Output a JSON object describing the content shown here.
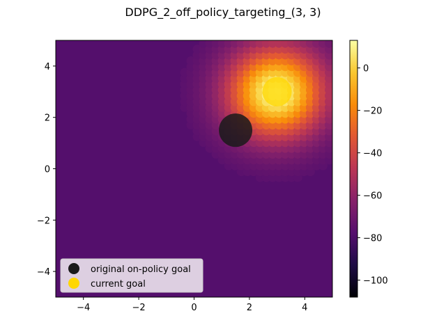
{
  "chart_data": {
    "type": "heatmap",
    "title": "DDPG_2_off_policy_targeting_(3, 3)",
    "xlabel": "",
    "ylabel": "",
    "xlim": [
      -5,
      5
    ],
    "ylim": [
      -5,
      5
    ],
    "x_ticks": [
      -4,
      -2,
      0,
      2,
      4
    ],
    "y_ticks": [
      -4,
      -2,
      0,
      2,
      4
    ],
    "colormap": "inferno",
    "colorbar": {
      "range": [
        -108,
        13
      ],
      "ticks": [
        0,
        -20,
        -40,
        -60,
        -80,
        -100
      ]
    },
    "field": {
      "background_value": -78,
      "peak_center": [
        3,
        3
      ],
      "peak_value": 13,
      "decay_radius": 2.6
    },
    "markers": [
      {
        "label": "original on-policy goal",
        "x": 1.5,
        "y": 1.5,
        "color": "#1a1a1a"
      },
      {
        "label": "current goal",
        "x": 3.0,
        "y": 3.0,
        "color": "#ffd700"
      }
    ],
    "legend": {
      "placement": "lower left",
      "entries": [
        "original on-policy goal",
        "current goal"
      ]
    },
    "grid": false
  }
}
